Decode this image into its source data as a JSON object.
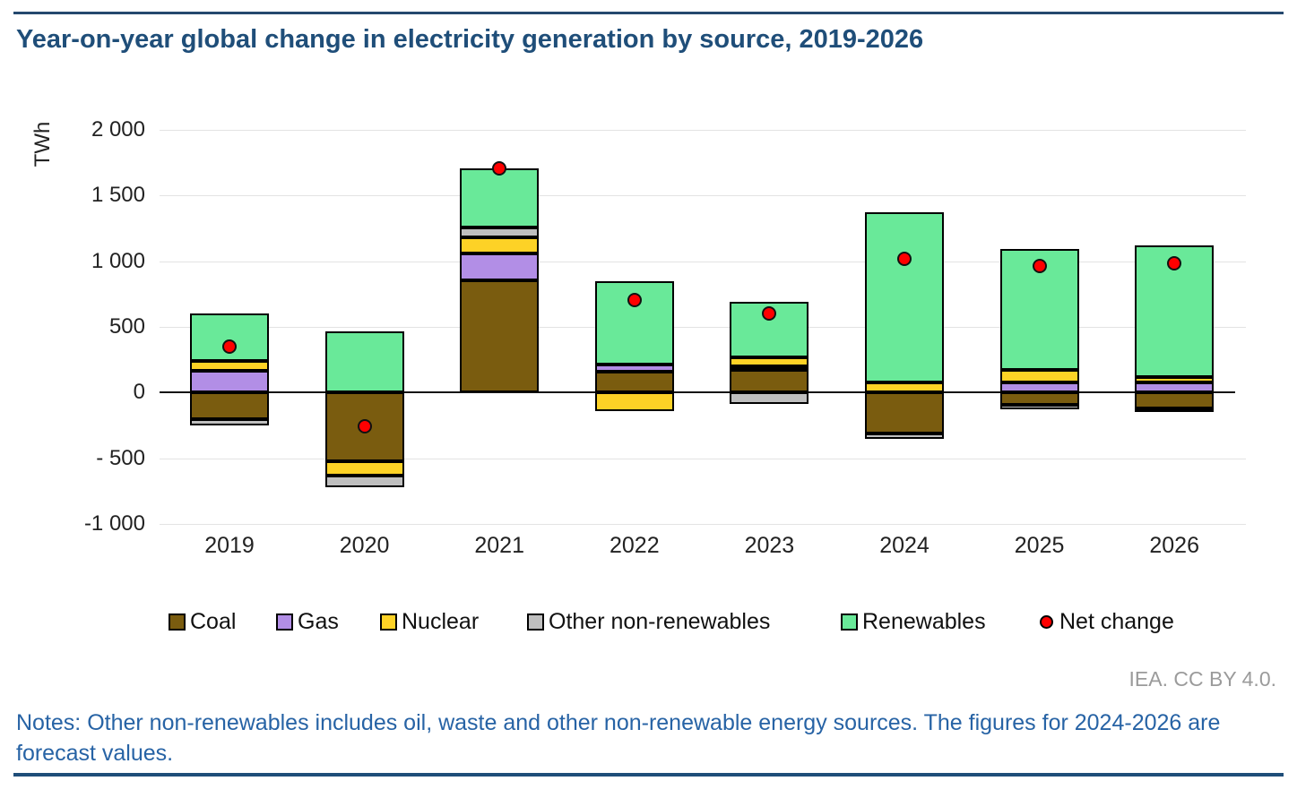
{
  "page": {
    "title": "Year-on-year global change in electricity generation by source, 2019-2026",
    "attribution": "IEA. CC BY 4.0.",
    "notes": "Notes: Other non-renewables includes oil, waste and other non-renewable energy sources. The figures for 2024-2026 are forecast values.",
    "accent_color": "#1F4E79"
  },
  "chart_data": {
    "type": "bar",
    "stacked": true,
    "title": "Year-on-year global change in electricity generation by source, 2019-2026",
    "xlabel": "",
    "ylabel": "TWh",
    "unit": "TWh",
    "ylim": [
      -1000,
      2000
    ],
    "grid": true,
    "legend_position": "bottom",
    "categories": [
      "2019",
      "2020",
      "2021",
      "2022",
      "2023",
      "2024",
      "2025",
      "2026"
    ],
    "series": [
      {
        "name": "Coal",
        "color": "#7A5C0F",
        "values": [
          -200,
          -520,
          855,
          160,
          175,
          -310,
          -90,
          -120
        ]
      },
      {
        "name": "Gas",
        "color": "#B28EE6",
        "values": [
          165,
          0,
          205,
          55,
          25,
          0,
          80,
          80
        ]
      },
      {
        "name": "Nuclear",
        "color": "#FDD226",
        "values": [
          75,
          -115,
          120,
          -140,
          70,
          75,
          95,
          40
        ]
      },
      {
        "name": "Other non-renewables",
        "color": "#BFBFBF",
        "values": [
          -50,
          -85,
          75,
          0,
          -85,
          -40,
          -35,
          -15
        ]
      },
      {
        "name": "Renewables",
        "color": "#69E999",
        "values": [
          360,
          465,
          450,
          630,
          420,
          1295,
          915,
          1000
        ]
      }
    ],
    "scatter_series": {
      "name": "Net change",
      "color": "#FF0000",
      "values": [
        350,
        -255,
        1705,
        705,
        605,
        1020,
        965,
        985
      ]
    },
    "yticks": [
      {
        "value": 2000,
        "label": "2 000"
      },
      {
        "value": 1500,
        "label": "1 500"
      },
      {
        "value": 1000,
        "label": "1 000"
      },
      {
        "value": 500,
        "label": "500"
      },
      {
        "value": 0,
        "label": "0"
      },
      {
        "value": -500,
        "label": "- 500"
      },
      {
        "value": -1000,
        "label": "-1 000"
      }
    ],
    "legend_x_positions": [
      188,
      308,
      424,
      588,
      938,
      1160
    ],
    "legend_y": 681
  }
}
